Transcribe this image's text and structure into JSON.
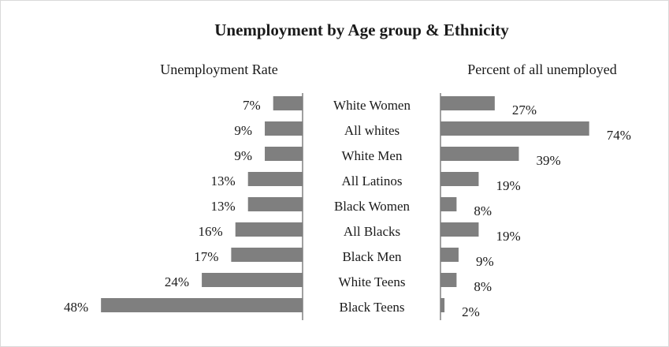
{
  "chart_data": {
    "type": "bar",
    "title": "Unemployment by Age group & Ethnicity",
    "categories": [
      "White Women",
      "All whites",
      "White Men",
      "All Latinos",
      "Black Women",
      "All Blacks",
      "Black Men",
      "White Teens",
      "Black Teens"
    ],
    "value_format": "percent",
    "series": [
      {
        "name": "Unemployment Rate",
        "values": [
          7,
          9,
          9,
          13,
          13,
          16,
          17,
          24,
          48
        ],
        "labels": [
          "7%",
          "9%",
          "9%",
          "13%",
          "13%",
          "16%",
          "17%",
          "24%",
          "48%"
        ],
        "direction": "left",
        "range": [
          0,
          50
        ]
      },
      {
        "name": "Percent of all unemployed",
        "values": [
          27,
          74,
          39,
          19,
          8,
          19,
          9,
          8,
          2
        ],
        "labels": [
          "27%",
          "74%",
          "39%",
          "19%",
          "8%",
          "19%",
          "9%",
          "8%",
          "2%"
        ],
        "direction": "right",
        "range": [
          0,
          75
        ]
      }
    ],
    "colors": {
      "bar": "#7f7f7f",
      "axis": "#808080",
      "frame": "#d9d9d9"
    },
    "legend": "none",
    "grid": false
  }
}
